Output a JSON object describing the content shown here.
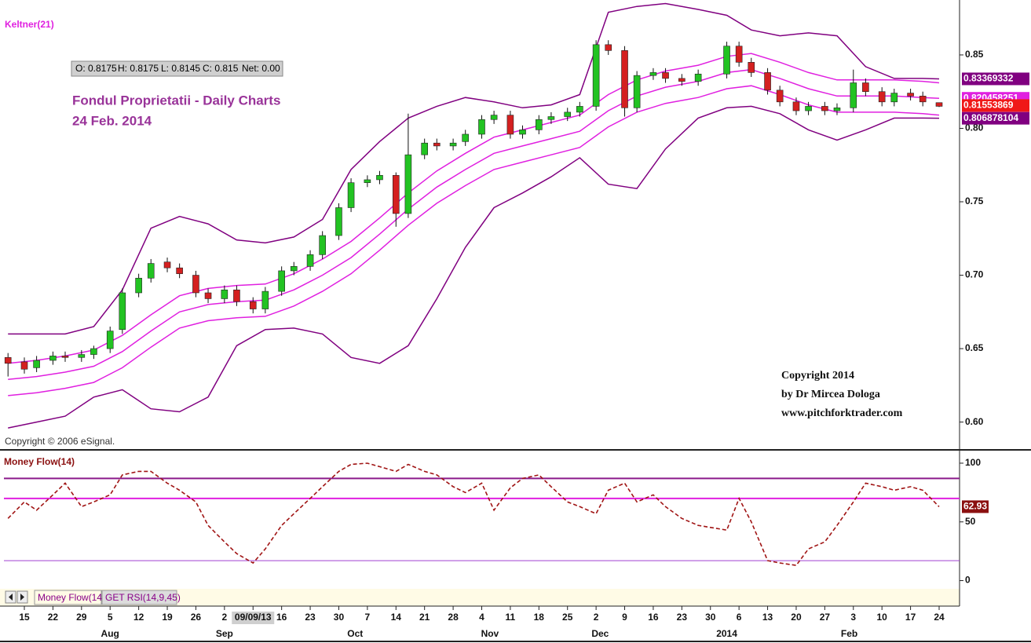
{
  "chart_data": [
    {
      "type": "candlestick",
      "indicator_label": "Keltner(21)",
      "title": "Fondul Proprietatii - Daily Charts",
      "subtitle": "24 Feb.  2014",
      "info": [
        "O: 0.8175",
        "H: 0.8175",
        "L: 0.8145",
        "C: 0.815",
        "Net: 0.00"
      ],
      "annotations": [
        "Copyright 2014",
        "by Dr Mircea Dologa",
        "www.pitchforktrader.com"
      ],
      "source": "Copyright © 2006 eSignal.",
      "xlim": [
        "2013-07-10",
        "2014-03-01"
      ],
      "ylim": [
        0.5816,
        0.8874
      ],
      "yticks": [
        {
          "value": 0.6,
          "label": "0.60"
        },
        0.65,
        {
          "value": 0.7,
          "label": "0.70"
        },
        0.75,
        {
          "value": 0.8,
          "label": "0.80"
        },
        0.85
      ],
      "x": [
        "2013-07-11",
        "2013-07-15",
        "2013-07-18",
        "2013-07-22",
        "2013-07-25",
        "2013-07-29",
        "2013-08-01",
        "2013-08-05",
        "2013-08-08",
        "2013-08-12",
        "2013-08-15",
        "2013-08-19",
        "2013-08-22",
        "2013-08-26",
        "2013-08-29",
        "2013-09-02",
        "2013-09-05",
        "2013-09-09",
        "2013-09-12",
        "2013-09-16",
        "2013-09-19",
        "2013-09-23",
        "2013-09-26",
        "2013-09-30",
        "2013-10-03",
        "2013-10-07",
        "2013-10-10",
        "2013-10-14",
        "2013-10-17",
        "2013-10-21",
        "2013-10-24",
        "2013-10-28",
        "2013-10-31",
        "2013-11-04",
        "2013-11-07",
        "2013-11-11",
        "2013-11-14",
        "2013-11-18",
        "2013-11-21",
        "2013-11-25",
        "2013-11-28",
        "2013-12-02",
        "2013-12-05",
        "2013-12-09",
        "2013-12-12",
        "2013-12-16",
        "2013-12-19",
        "2013-12-23",
        "2013-12-27",
        "2014-01-03",
        "2014-01-06",
        "2014-01-09",
        "2014-01-13",
        "2014-01-16",
        "2014-01-20",
        "2014-01-23",
        "2014-01-27",
        "2014-01-30",
        "2014-02-03",
        "2014-02-06",
        "2014-02-10",
        "2014-02-13",
        "2014-02-17",
        "2014-02-20",
        "2014-02-24"
      ],
      "ohlc": {
        "open": [
          0.644,
          0.641,
          0.637,
          0.642,
          0.645,
          0.644,
          0.646,
          0.65,
          0.663,
          0.688,
          0.698,
          0.709,
          0.705,
          0.7,
          0.688,
          0.684,
          0.69,
          0.682,
          0.677,
          0.689,
          0.703,
          0.706,
          0.714,
          0.727,
          0.746,
          0.763,
          0.765,
          0.768,
          0.742,
          0.782,
          0.79,
          0.788,
          0.791,
          0.796,
          0.806,
          0.809,
          0.796,
          0.799,
          0.806,
          0.808,
          0.811,
          0.815,
          0.857,
          0.853,
          0.814,
          0.836,
          0.838,
          0.834,
          0.832,
          0.837,
          0.856,
          0.845,
          0.838,
          0.826,
          0.818,
          0.812,
          0.815,
          0.812,
          0.814,
          0.831,
          0.825,
          0.818,
          0.824,
          0.822,
          0.8175
        ],
        "high": [
          0.647,
          0.644,
          0.645,
          0.648,
          0.648,
          0.649,
          0.652,
          0.665,
          0.691,
          0.701,
          0.711,
          0.712,
          0.708,
          0.703,
          0.691,
          0.693,
          0.693,
          0.685,
          0.692,
          0.706,
          0.709,
          0.717,
          0.73,
          0.749,
          0.766,
          0.768,
          0.771,
          0.77,
          0.81,
          0.793,
          0.793,
          0.793,
          0.799,
          0.809,
          0.812,
          0.812,
          0.802,
          0.809,
          0.811,
          0.814,
          0.818,
          0.86,
          0.86,
          0.856,
          0.839,
          0.841,
          0.841,
          0.837,
          0.84,
          0.859,
          0.859,
          0.848,
          0.841,
          0.829,
          0.821,
          0.818,
          0.818,
          0.817,
          0.84,
          0.834,
          0.828,
          0.827,
          0.827,
          0.825,
          0.8175
        ],
        "low": [
          0.631,
          0.633,
          0.634,
          0.639,
          0.641,
          0.641,
          0.643,
          0.647,
          0.66,
          0.685,
          0.695,
          0.702,
          0.698,
          0.685,
          0.681,
          0.681,
          0.679,
          0.674,
          0.674,
          0.686,
          0.7,
          0.703,
          0.711,
          0.724,
          0.743,
          0.76,
          0.762,
          0.733,
          0.739,
          0.779,
          0.785,
          0.785,
          0.788,
          0.793,
          0.803,
          0.793,
          0.793,
          0.796,
          0.803,
          0.805,
          0.808,
          0.812,
          0.85,
          0.808,
          0.811,
          0.833,
          0.831,
          0.829,
          0.829,
          0.834,
          0.842,
          0.835,
          0.823,
          0.815,
          0.809,
          0.809,
          0.809,
          0.809,
          0.811,
          0.822,
          0.815,
          0.815,
          0.819,
          0.815,
          0.8145
        ],
        "close": [
          0.64,
          0.636,
          0.642,
          0.645,
          0.644,
          0.646,
          0.65,
          0.662,
          0.688,
          0.698,
          0.708,
          0.705,
          0.701,
          0.688,
          0.684,
          0.69,
          0.682,
          0.677,
          0.689,
          0.703,
          0.706,
          0.714,
          0.727,
          0.746,
          0.763,
          0.765,
          0.768,
          0.742,
          0.782,
          0.79,
          0.788,
          0.79,
          0.796,
          0.806,
          0.809,
          0.796,
          0.799,
          0.806,
          0.808,
          0.811,
          0.815,
          0.857,
          0.853,
          0.814,
          0.836,
          0.838,
          0.834,
          0.832,
          0.837,
          0.856,
          0.845,
          0.838,
          0.826,
          0.818,
          0.812,
          0.815,
          0.812,
          0.814,
          0.831,
          0.825,
          0.818,
          0.824,
          0.822,
          0.818,
          0.815
        ],
        "up_color": "#22c322",
        "down_color": "#d42020"
      },
      "last_price": 0.81553869,
      "last_price_color": "#f01818",
      "bands": {
        "x": [
          "2013-07-11",
          "2013-07-18",
          "2013-07-25",
          "2013-08-01",
          "2013-08-08",
          "2013-08-15",
          "2013-08-22",
          "2013-08-29",
          "2013-09-05",
          "2013-09-12",
          "2013-09-19",
          "2013-09-26",
          "2013-10-03",
          "2013-10-10",
          "2013-10-17",
          "2013-10-24",
          "2013-10-31",
          "2013-11-07",
          "2013-11-14",
          "2013-11-21",
          "2013-11-28",
          "2013-12-05",
          "2013-12-12",
          "2013-12-19",
          "2013-12-27",
          "2014-01-03",
          "2014-01-09",
          "2014-01-16",
          "2014-01-23",
          "2014-01-30",
          "2014-02-06",
          "2014-02-13",
          "2014-02-20",
          "2014-02-24"
        ],
        "series": [
          {
            "color": "#800080",
            "values": [
              0.66,
              0.66,
              0.66,
              0.665,
              0.69,
              0.732,
              0.74,
              0.735,
              0.724,
              0.722,
              0.726,
              0.738,
              0.772,
              0.791,
              0.807,
              0.815,
              0.821,
              0.818,
              0.814,
              0.816,
              0.823,
              0.879,
              0.883,
              0.885,
              0.881,
              0.877,
              0.867,
              0.863,
              0.865,
              0.863,
              0.842,
              0.834,
              0.834,
              0.83369332
            ],
            "last_label": true
          },
          {
            "color": "#e020e0",
            "values": [
              0.64,
              0.642,
              0.645,
              0.649,
              0.659,
              0.673,
              0.686,
              0.691,
              0.693,
              0.694,
              0.701,
              0.711,
              0.723,
              0.739,
              0.756,
              0.771,
              0.783,
              0.794,
              0.799,
              0.804,
              0.809,
              0.823,
              0.833,
              0.839,
              0.843,
              0.849,
              0.851,
              0.845,
              0.838,
              0.833,
              0.833,
              0.833,
              0.832,
              0.831
            ]
          },
          {
            "color": "#e020e0",
            "values": [
              0.629,
              0.631,
              0.634,
              0.638,
              0.648,
              0.662,
              0.675,
              0.68,
              0.682,
              0.683,
              0.69,
              0.7,
              0.712,
              0.728,
              0.745,
              0.76,
              0.772,
              0.783,
              0.788,
              0.793,
              0.798,
              0.812,
              0.822,
              0.828,
              0.832,
              0.838,
              0.84,
              0.834,
              0.827,
              0.822,
              0.822,
              0.822,
              0.821,
              0.820458251
            ],
            "last_label": true
          },
          {
            "color": "#e020e0",
            "values": [
              0.618,
              0.62,
              0.623,
              0.627,
              0.637,
              0.651,
              0.664,
              0.669,
              0.671,
              0.672,
              0.679,
              0.689,
              0.701,
              0.717,
              0.734,
              0.749,
              0.761,
              0.772,
              0.777,
              0.782,
              0.787,
              0.801,
              0.811,
              0.817,
              0.821,
              0.827,
              0.829,
              0.823,
              0.816,
              0.811,
              0.811,
              0.811,
              0.81,
              0.809
            ]
          },
          {
            "color": "#800080",
            "values": [
              0.596,
              0.6,
              0.604,
              0.617,
              0.622,
              0.609,
              0.607,
              0.617,
              0.652,
              0.663,
              0.664,
              0.66,
              0.644,
              0.64,
              0.652,
              0.684,
              0.719,
              0.746,
              0.756,
              0.767,
              0.78,
              0.762,
              0.759,
              0.786,
              0.807,
              0.814,
              0.815,
              0.81,
              0.799,
              0.792,
              0.799,
              0.807,
              0.807,
              0.806878104
            ],
            "last_label": true
          }
        ]
      }
    },
    {
      "type": "line",
      "title": "Money Flow(14)",
      "tabs": [
        "Money Flow(14)",
        "GET RSI(14,9,45)"
      ],
      "xlim": [
        "2013-07-10",
        "2014-03-01"
      ],
      "ylim": [
        -7,
        110
      ],
      "yticks": [
        100,
        50,
        0
      ],
      "hlines": [
        {
          "value": 87,
          "color": "#8b1a8b"
        },
        {
          "value": 70,
          "color": "#e020e0"
        },
        {
          "value": 17,
          "color": "#a040d0"
        }
      ],
      "xticks": [
        {
          "value": "2013-07-15",
          "label": "15"
        },
        {
          "value": "2013-07-22",
          "label": "22"
        },
        {
          "value": "2013-07-29",
          "label": "29"
        },
        {
          "value": "2013-08-05",
          "label": "5"
        },
        {
          "value": "2013-08-12",
          "label": "12"
        },
        {
          "value": "2013-08-19",
          "label": "19"
        },
        {
          "value": "2013-08-26",
          "label": "26"
        },
        {
          "value": "2013-09-02",
          "label": "2"
        },
        {
          "value": "2013-09-09",
          "label": "09/09/13"
        },
        {
          "value": "2013-09-16",
          "label": "16"
        },
        {
          "value": "2013-09-23",
          "label": "23"
        },
        {
          "value": "2013-09-30",
          "label": "30"
        },
        {
          "value": "2013-10-07",
          "label": "7"
        },
        {
          "value": "2013-10-14",
          "label": "14"
        },
        {
          "value": "2013-10-21",
          "label": "21"
        },
        {
          "value": "2013-10-28",
          "label": "28"
        },
        {
          "value": "2013-11-04",
          "label": "4"
        },
        {
          "value": "2013-11-11",
          "label": "11"
        },
        {
          "value": "2013-11-18",
          "label": "18"
        },
        {
          "value": "2013-11-25",
          "label": "25"
        },
        {
          "value": "2013-12-02",
          "label": "2"
        },
        {
          "value": "2013-12-09",
          "label": "9"
        },
        {
          "value": "2013-12-16",
          "label": "16"
        },
        {
          "value": "2013-12-23",
          "label": "23"
        },
        {
          "value": "2013-12-30",
          "label": "30"
        },
        {
          "value": "2014-01-06",
          "label": "6"
        },
        {
          "value": "2014-01-13",
          "label": "13"
        },
        {
          "value": "2014-01-20",
          "label": "20"
        },
        {
          "value": "2014-01-27",
          "label": "27"
        },
        {
          "value": "2014-02-03",
          "label": "3"
        },
        {
          "value": "2014-02-10",
          "label": "10"
        },
        {
          "value": "2014-02-17",
          "label": "17"
        },
        {
          "value": "2014-02-24",
          "label": "24"
        }
      ],
      "highlighted_xtick": 8,
      "month_labels": [
        {
          "value": "2013-08-05",
          "label": "Aug"
        },
        {
          "value": "2013-09-02",
          "label": "Sep"
        },
        {
          "value": "2013-10-04",
          "label": "Oct"
        },
        {
          "value": "2013-11-06",
          "label": "Nov"
        },
        {
          "value": "2013-12-03",
          "label": "Dec"
        },
        {
          "value": "2014-01-03",
          "label": "2014"
        },
        {
          "value": "2014-02-02",
          "label": "Feb"
        }
      ],
      "series": [
        {
          "color": "#a01414",
          "values": [
            53,
            67,
            60,
            73,
            83,
            63,
            67,
            73,
            90,
            93,
            93,
            83,
            77,
            67,
            47,
            33,
            23,
            15,
            27,
            47,
            57,
            70,
            80,
            93,
            99,
            100,
            97,
            93,
            99,
            93,
            90,
            80,
            75,
            83,
            60,
            79,
            87,
            90,
            80,
            67,
            63,
            57,
            77,
            83,
            67,
            73,
            63,
            53,
            47,
            43,
            70,
            50,
            17,
            15,
            13,
            27,
            33,
            47,
            67,
            83,
            80,
            77,
            80,
            77,
            62.93
          ],
          "last_label": true
        }
      ]
    }
  ]
}
